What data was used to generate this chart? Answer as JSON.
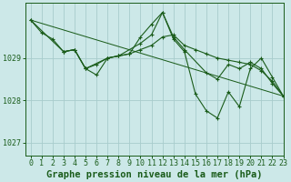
{
  "title": "Graphe pression niveau de la mer (hPa)",
  "bg_color": "#cce8e8",
  "plot_bg": "#cce8e8",
  "line_color": "#1a5c1a",
  "grid_color": "#a8cccc",
  "xlim": [
    -0.5,
    23
  ],
  "ylim": [
    1026.7,
    1030.3
  ],
  "yticks": [
    1027,
    1028,
    1029
  ],
  "xticks": [
    0,
    1,
    2,
    3,
    4,
    5,
    6,
    7,
    8,
    9,
    10,
    11,
    12,
    13,
    14,
    15,
    16,
    17,
    18,
    19,
    20,
    21,
    22,
    23
  ],
  "series1": [
    [
      0,
      1029.9
    ],
    [
      1,
      1029.6
    ],
    [
      2,
      1029.45
    ],
    [
      3,
      1029.15
    ],
    [
      4,
      1029.2
    ],
    [
      5,
      1028.75
    ],
    [
      6,
      1028.85
    ],
    [
      7,
      1029.0
    ],
    [
      8,
      1029.05
    ],
    [
      9,
      1029.1
    ],
    [
      10,
      1029.5
    ],
    [
      11,
      1029.8
    ],
    [
      12,
      1030.08
    ],
    [
      13,
      1029.45
    ],
    [
      14,
      1029.15
    ],
    [
      15,
      1028.15
    ],
    [
      16,
      1027.75
    ],
    [
      17,
      1027.58
    ],
    [
      18,
      1028.2
    ],
    [
      19,
      1027.85
    ],
    [
      20,
      1028.75
    ],
    [
      21,
      1029.0
    ],
    [
      22,
      1028.55
    ],
    [
      23,
      1028.1
    ]
  ],
  "series2": [
    [
      0,
      1029.9
    ],
    [
      3,
      1029.15
    ],
    [
      4,
      1029.2
    ],
    [
      5,
      1028.75
    ],
    [
      7,
      1029.0
    ],
    [
      8,
      1029.05
    ],
    [
      10,
      1029.35
    ],
    [
      11,
      1029.55
    ],
    [
      12,
      1030.08
    ],
    [
      13,
      1029.5
    ],
    [
      14,
      1029.2
    ],
    [
      16,
      1028.65
    ],
    [
      17,
      1028.5
    ],
    [
      18,
      1028.85
    ],
    [
      19,
      1028.75
    ],
    [
      20,
      1028.9
    ],
    [
      21,
      1028.75
    ],
    [
      22,
      1028.4
    ],
    [
      23,
      1028.1
    ]
  ],
  "series3": [
    [
      0,
      1029.9
    ],
    [
      23,
      1028.1
    ]
  ],
  "series4": [
    [
      3,
      1029.15
    ],
    [
      4,
      1029.2
    ],
    [
      5,
      1028.75
    ],
    [
      6,
      1028.6
    ],
    [
      7,
      1029.0
    ],
    [
      8,
      1029.05
    ],
    [
      9,
      1029.1
    ],
    [
      10,
      1029.2
    ],
    [
      11,
      1029.3
    ],
    [
      12,
      1029.5
    ],
    [
      13,
      1029.55
    ],
    [
      14,
      1029.3
    ],
    [
      15,
      1029.2
    ],
    [
      16,
      1029.1
    ],
    [
      17,
      1029.0
    ],
    [
      18,
      1028.95
    ],
    [
      19,
      1028.9
    ],
    [
      20,
      1028.85
    ],
    [
      21,
      1028.7
    ],
    [
      22,
      1028.45
    ],
    [
      23,
      1028.1
    ]
  ],
  "title_fontsize": 7.5,
  "tick_fontsize": 6,
  "marker_size": 3.5
}
